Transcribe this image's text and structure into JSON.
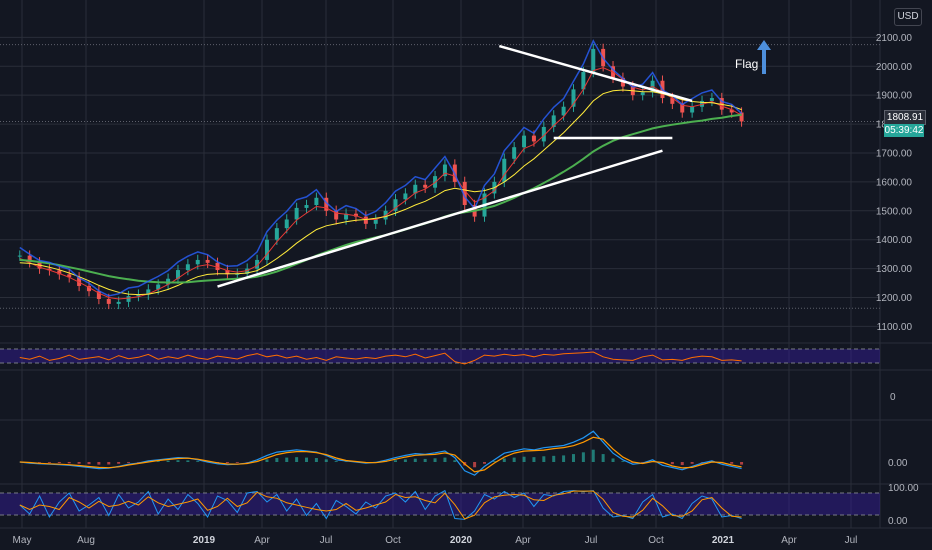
{
  "chart_data": {
    "type": "line",
    "currency_label": "USD",
    "last_price": "1808.91",
    "countdown": "05:39:42",
    "annotation": "Flag",
    "price_axis": {
      "ticks": [
        1100,
        1200,
        1300,
        1400,
        1500,
        1600,
        1700,
        1800,
        1900,
        2000,
        2100
      ],
      "tick_labels": [
        "1100.00",
        "1200.00",
        "1300.00",
        "1400.00",
        "1500.00",
        "1600.00",
        "1700.00",
        "1800.00",
        "1900.00",
        "2000.00",
        "2100.00"
      ],
      "ylim": [
        1060,
        2160
      ]
    },
    "time_axis": {
      "labels": [
        "May",
        "Aug",
        "2019",
        "Apr",
        "Jul",
        "Oct",
        "2020",
        "Apr",
        "Jul",
        "Oct",
        "2021",
        "Apr",
        "Jul"
      ],
      "bold": [
        false,
        false,
        true,
        false,
        false,
        false,
        true,
        false,
        false,
        false,
        true,
        false,
        false
      ]
    },
    "price_series": {
      "x": [
        0,
        2,
        4,
        6,
        8,
        10,
        12,
        14,
        16,
        18,
        20,
        22,
        24,
        26,
        28,
        30,
        32,
        34,
        36,
        38,
        40,
        42,
        44,
        46,
        48,
        50,
        52,
        54,
        56,
        58,
        60,
        62,
        64,
        66,
        68,
        70,
        72,
        74,
        76,
        78,
        80,
        82,
        84,
        86,
        88,
        90,
        92,
        94,
        96,
        98,
        100,
        102,
        104,
        106,
        108,
        110,
        112,
        114,
        116,
        118,
        120,
        122,
        124,
        126,
        128,
        130,
        132,
        134,
        136,
        138,
        140,
        142,
        144,
        146
      ],
      "close": [
        1345,
        1322,
        1300,
        1294,
        1280,
        1270,
        1240,
        1222,
        1195,
        1178,
        1185,
        1205,
        1210,
        1228,
        1245,
        1265,
        1295,
        1315,
        1330,
        1320,
        1295,
        1280,
        1282,
        1300,
        1330,
        1400,
        1440,
        1470,
        1510,
        1520,
        1545,
        1500,
        1470,
        1490,
        1480,
        1455,
        1470,
        1500,
        1540,
        1560,
        1590,
        1580,
        1620,
        1660,
        1600,
        1520,
        1480,
        1560,
        1600,
        1680,
        1720,
        1760,
        1740,
        1790,
        1830,
        1860,
        1920,
        1980,
        2060,
        2000,
        1960,
        1930,
        1900,
        1910,
        1950,
        1890,
        1870,
        1840,
        1860,
        1880,
        1890,
        1850,
        1840,
        1809
      ],
      "min": 1163,
      "max": 2075
    },
    "moving_averages": [
      {
        "color": "#e53935",
        "values": [
          1335,
          1320,
          1305,
          1295,
          1283,
          1270,
          1253,
          1235,
          1215,
          1200,
          1195,
          1198,
          1203,
          1213,
          1228,
          1245,
          1267,
          1290,
          1308,
          1314,
          1305,
          1293,
          1288,
          1293,
          1310,
          1350,
          1393,
          1430,
          1468,
          1492,
          1515,
          1510,
          1492,
          1488,
          1483,
          1470,
          1470,
          1483,
          1510,
          1535,
          1562,
          1575,
          1598,
          1630,
          1620,
          1570,
          1530,
          1545,
          1570,
          1625,
          1670,
          1715,
          1730,
          1760,
          1795,
          1825,
          1870,
          1920,
          1985,
          1995,
          1980,
          1955,
          1928,
          1918,
          1930,
          1910,
          1890,
          1865,
          1860,
          1868,
          1878,
          1862,
          1850,
          1830
        ]
      },
      {
        "color": "#ffeb3b",
        "values": [
          1320,
          1318,
          1312,
          1305,
          1296,
          1285,
          1272,
          1258,
          1242,
          1228,
          1218,
          1212,
          1210,
          1212,
          1218,
          1228,
          1242,
          1258,
          1272,
          1280,
          1282,
          1282,
          1282,
          1285,
          1293,
          1312,
          1335,
          1360,
          1388,
          1412,
          1435,
          1448,
          1455,
          1462,
          1467,
          1470,
          1474,
          1480,
          1492,
          1505,
          1520,
          1533,
          1550,
          1570,
          1578,
          1572,
          1566,
          1570,
          1580,
          1600,
          1625,
          1655,
          1680,
          1710,
          1740,
          1770,
          1805,
          1840,
          1880,
          1905,
          1915,
          1918,
          1915,
          1912,
          1912,
          1905,
          1895,
          1884,
          1878,
          1875,
          1874,
          1868,
          1862,
          1850
        ]
      },
      {
        "color": "#4caf50",
        "values": [
          1330,
          1327,
          1323,
          1318,
          1312,
          1305,
          1298,
          1290,
          1282,
          1274,
          1268,
          1263,
          1258,
          1255,
          1253,
          1252,
          1252,
          1253,
          1256,
          1259,
          1261,
          1263,
          1265,
          1268,
          1272,
          1280,
          1290,
          1302,
          1316,
          1330,
          1345,
          1358,
          1370,
          1382,
          1392,
          1400,
          1408,
          1416,
          1425,
          1435,
          1446,
          1456,
          1467,
          1480,
          1490,
          1495,
          1500,
          1508,
          1517,
          1530,
          1545,
          1562,
          1578,
          1596,
          1615,
          1635,
          1656,
          1680,
          1705,
          1725,
          1742,
          1755,
          1765,
          1775,
          1785,
          1792,
          1798,
          1803,
          1808,
          1812,
          1818,
          1822,
          1828,
          1832
        ]
      }
    ],
    "trend_lines": [
      {
        "name": "upper-resistance",
        "from": [
          2070,
          101
        ],
        "to": [
          1880,
          140
        ]
      },
      {
        "name": "flag-support",
        "from": [
          1752,
          112
        ],
        "to": [
          1752,
          136
        ]
      },
      {
        "name": "lower-support",
        "from": [
          1238,
          44
        ],
        "to": [
          1708,
          134
        ]
      }
    ],
    "indicators": [
      {
        "name": "rsi",
        "color": "#ff6d00",
        "band_color": "#311b92",
        "values": [
          52,
          45,
          58,
          40,
          48,
          62,
          44,
          50,
          56,
          42,
          60,
          47,
          53,
          65,
          45,
          55,
          48,
          62,
          50,
          44,
          58,
          52,
          46,
          60,
          68,
          55,
          62,
          50,
          58,
          45,
          52,
          40,
          55,
          50,
          46,
          52,
          48,
          58,
          62,
          55,
          66,
          50,
          60,
          70,
          35,
          25,
          40,
          62,
          58,
          66,
          60,
          64,
          55,
          65,
          62,
          68,
          70,
          72,
          75,
          55,
          45,
          42,
          40,
          55,
          62,
          42,
          44,
          40,
          52,
          58,
          55,
          40,
          42,
          38
        ]
      },
      {
        "name": "volume",
        "axis_label": "0"
      },
      {
        "name": "macd",
        "axis_label": "0.00",
        "values": [
          0,
          -5,
          -8,
          -10,
          -12,
          -15,
          -20,
          -25,
          -30,
          -28,
          -20,
          -10,
          -5,
          5,
          10,
          15,
          20,
          18,
          10,
          0,
          -8,
          -12,
          -10,
          -5,
          10,
          30,
          45,
          50,
          55,
          50,
          45,
          30,
          10,
          5,
          0,
          -5,
          -2,
          8,
          20,
          30,
          38,
          35,
          42,
          50,
          20,
          -40,
          -60,
          -20,
          10,
          40,
          50,
          60,
          55,
          65,
          70,
          75,
          90,
          110,
          140,
          90,
          40,
          10,
          -10,
          -5,
          10,
          -15,
          -25,
          -35,
          -20,
          -5,
          5,
          -10,
          -20,
          -30
        ]
      },
      {
        "name": "stochastic-rsi",
        "tick_labels": [
          "100.00",
          "0.00"
        ],
        "values": [
          50,
          20,
          80,
          10,
          60,
          90,
          30,
          50,
          75,
          15,
          85,
          40,
          60,
          95,
          20,
          70,
          35,
          85,
          55,
          10,
          80,
          65,
          25,
          90,
          95,
          60,
          85,
          30,
          70,
          15,
          55,
          5,
          65,
          45,
          20,
          60,
          40,
          80,
          90,
          60,
          95,
          35,
          80,
          98,
          5,
          2,
          30,
          85,
          70,
          95,
          75,
          90,
          45,
          85,
          80,
          95,
          98,
          95,
          98,
          40,
          10,
          15,
          5,
          60,
          85,
          10,
          20,
          5,
          55,
          80,
          70,
          10,
          15,
          5
        ]
      }
    ],
    "colors": {
      "background": "#131722",
      "grid": "#2a2e39",
      "trend_line": "#ffffff",
      "arrow": "#4d8fdc",
      "countdown_bg": "#26a69a"
    }
  }
}
